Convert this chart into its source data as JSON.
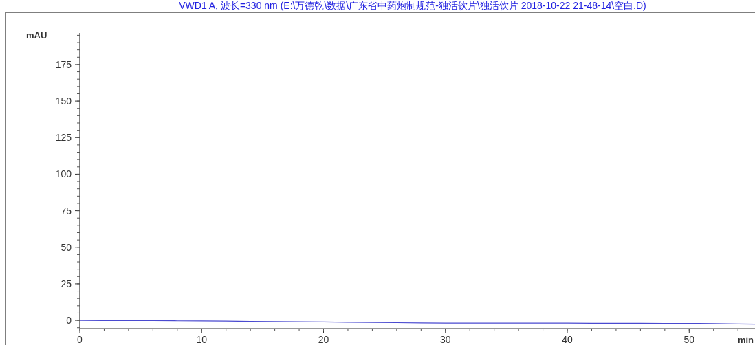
{
  "chart_data": {
    "type": "line",
    "title": "VWD1 A, 波长=330 nm (E:\\万德乾\\数据\\广东省中药炮制规范-独活饮片\\独活饮片 2018-10-22 21-48-14\\空白.D)",
    "xlabel": "min",
    "ylabel": "mAU",
    "x": [
      0,
      2,
      4,
      6,
      8,
      10,
      12,
      14,
      16,
      18,
      20,
      22,
      24,
      26,
      28,
      30,
      32,
      34,
      36,
      38,
      40,
      42,
      44,
      46,
      48,
      50,
      52,
      54,
      55.4
    ],
    "series": [
      {
        "color": "#4a4ad0",
        "values": [
          0,
          -0.1,
          -0.2,
          -0.2,
          -0.3,
          -0.4,
          -0.5,
          -0.7,
          -0.8,
          -1,
          -1.1,
          -1.3,
          -1.4,
          -1.6,
          -1.8,
          -1.9,
          -1.9,
          -1.9,
          -1.9,
          -1.9,
          -1.9,
          -2,
          -2,
          -2,
          -2.1,
          -2.1,
          -2.2,
          -2.5,
          -2.6
        ]
      }
    ],
    "xlim": [
      0,
      55.4
    ],
    "ylim": [
      -5.6,
      196.6
    ],
    "xticks": [
      0,
      10,
      20,
      30,
      40,
      50
    ],
    "yticks": [
      0,
      25,
      50,
      75,
      100,
      125,
      150,
      175
    ],
    "grid": false
  }
}
